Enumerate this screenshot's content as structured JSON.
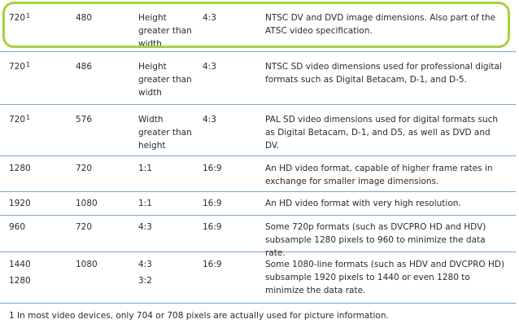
{
  "rows": [
    {
      "c1": "720",
      "sup": "1",
      "c2": "480",
      "c3": "Height greater than width",
      "c4": "4:3",
      "c5": "NTSC DV and DVD image dimensions. Also part of the ATSC video specification."
    },
    {
      "c1": "720",
      "sup": "1",
      "c2": "486",
      "c3": "Height greater than width",
      "c4": "4:3",
      "c5": "NTSC SD video dimensions used for professional digital formats such as Digital Betacam, D‑1, and D‑5."
    },
    {
      "c1": "720",
      "sup": "1",
      "c2": "576",
      "c3": "Width greater than height",
      "c4": "4:3",
      "c5": "PAL SD video dimensions used for digital formats such as Digital Betacam, D‑1, and D5, as well as DVD and DV."
    },
    {
      "c1": "1280",
      "c2": "720",
      "c3": "1:1",
      "c4": "16:9",
      "c5": "An HD video format, capable of higher frame rates in exchange for smaller image dimensions."
    },
    {
      "c1": "1920",
      "c2": "1080",
      "c3": "1:1",
      "c4": "16:9",
      "c5": "An HD video format with very high resolution."
    },
    {
      "c1": "960",
      "c2": "720",
      "c3": "4:3",
      "c4": "16:9",
      "c5": "Some 720p formats (such as DVCPRO HD and HDV) subsample 1280 pixels to 960 to minimize the data rate."
    },
    {
      "c1": "1440",
      "c1b": "1280",
      "c2": "1080",
      "c3": "4:3",
      "c3b": "3:2",
      "c4": "16:9",
      "c5": "Some 1080‑line formats (such as HDV and DVCPRO HD) subsample 1920 pixels to 1440 or even 1280 to minimize the data rate."
    }
  ],
  "footnote": "1 In most video devices, only 704 or 708 pixels are actually used for picture information.",
  "colors": {
    "highlight": "#a7d23a",
    "rule": "#7aa6c8",
    "text": "#2b2b2b"
  }
}
